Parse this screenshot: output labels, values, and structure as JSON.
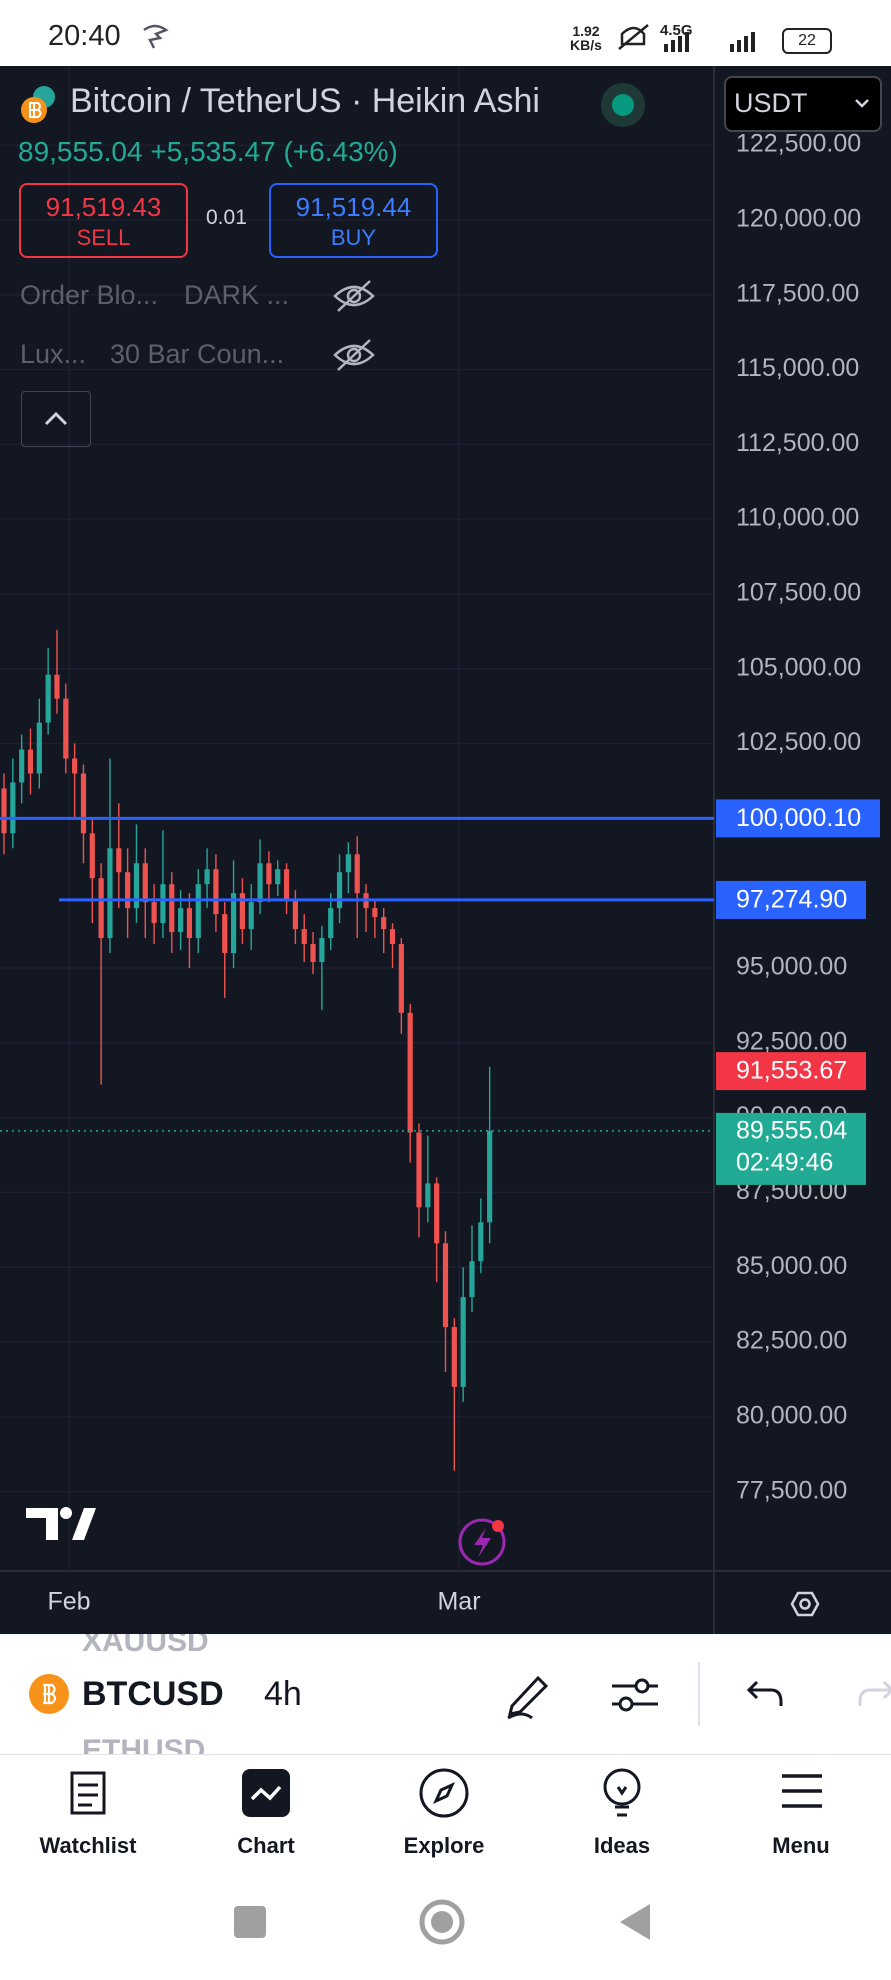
{
  "status": {
    "time": "20:40",
    "speed": "1.92",
    "speed_unit": "KB/s",
    "network": "4.5G",
    "battery": "22"
  },
  "header": {
    "currency": "USDT",
    "last": "89,555.04",
    "change": "+5,535.47",
    "change_pct": "(+6.43%)",
    "sell_price": "91,519.43",
    "sell_label": "SELL",
    "spread": "0.01",
    "buy_price": "91,519.44",
    "buy_label": "BUY",
    "indicators": [
      [
        "Order Blo...",
        "DARK ..."
      ],
      [
        "Lux...",
        "30 Bar Coun..."
      ]
    ]
  },
  "chart_data": {
    "type": "candlestick",
    "title": "Bitcoin / TetherUS · Heikin Ashi",
    "up_color": "#26a69a",
    "down_color": "#ef5350",
    "open": [
      101000,
      99500,
      101200,
      102300,
      101500,
      103200,
      104800,
      104000,
      102000,
      101500,
      99500,
      98000,
      96000,
      99000,
      98200,
      97000,
      98500,
      97200,
      96500,
      97800,
      96200,
      97000,
      96000,
      97800,
      98300,
      96800,
      95500,
      97500,
      96300,
      97200,
      98500,
      97800,
      98300,
      97300,
      96300,
      95800,
      95200,
      96000,
      97000,
      98200,
      98800,
      97500,
      97000,
      96700,
      96300,
      95800,
      93500,
      89500,
      87000,
      87800,
      85800,
      83000,
      81000,
      84000,
      85200,
      86500
    ],
    "high": [
      101500,
      102000,
      102800,
      103000,
      104000,
      105700,
      106300,
      104500,
      102500,
      101800,
      100000,
      98500,
      102000,
      100500,
      99000,
      99800,
      99000,
      97800,
      99600,
      98200,
      97600,
      97500,
      98300,
      99000,
      98800,
      97200,
      98600,
      98000,
      97800,
      99300,
      98900,
      98600,
      98500,
      97600,
      96800,
      96200,
      96400,
      97500,
      98800,
      99200,
      99400,
      97800,
      97300,
      97000,
      96500,
      96000,
      93800,
      89800,
      89400,
      88000,
      86200,
      83300,
      85000,
      86400,
      87300,
      91700
    ],
    "low": [
      98800,
      99000,
      100500,
      100800,
      101000,
      102800,
      103500,
      101500,
      100000,
      98500,
      96500,
      91100,
      95500,
      97000,
      96000,
      96500,
      96000,
      95800,
      96000,
      95500,
      95600,
      95000,
      95500,
      97000,
      96200,
      94000,
      95000,
      95800,
      95600,
      96800,
      97200,
      97400,
      96800,
      95800,
      95200,
      94800,
      93600,
      95600,
      96500,
      97500,
      96000,
      96200,
      96000,
      95500,
      95000,
      92800,
      88500,
      86000,
      86500,
      84500,
      81500,
      78200,
      80500,
      83500,
      84800,
      85800
    ],
    "close": [
      99500,
      101200,
      102300,
      101500,
      103200,
      104800,
      104000,
      102000,
      101500,
      99500,
      98000,
      96000,
      99000,
      98200,
      97000,
      98500,
      97200,
      96500,
      97800,
      96200,
      97000,
      96000,
      97800,
      98300,
      96800,
      95500,
      97500,
      96300,
      97200,
      98500,
      97800,
      98300,
      97300,
      96300,
      95800,
      95200,
      96000,
      97000,
      98200,
      98800,
      97500,
      97000,
      96700,
      96300,
      95800,
      93500,
      89500,
      87000,
      87800,
      85800,
      83000,
      81000,
      84000,
      85200,
      86500,
      89555.04
    ],
    "ylim": [
      74848,
      125143
    ],
    "grid": true,
    "grid_color": "#1c2030",
    "yticks": [
      {
        "value": 122500,
        "label": "122,500.00"
      },
      {
        "value": 120000,
        "label": "120,000.00"
      },
      {
        "value": 117500,
        "label": "117,500.00"
      },
      {
        "value": 115000,
        "label": "115,000.00"
      },
      {
        "value": 112500,
        "label": "112,500.00"
      },
      {
        "value": 110000,
        "label": "110,000.00"
      },
      {
        "value": 107500,
        "label": "107,500.00"
      },
      {
        "value": 105000,
        "label": "105,000.00"
      },
      {
        "value": 102500,
        "label": "102,500.00"
      },
      {
        "value": 95000,
        "label": "95,000.00"
      },
      {
        "value": 92500,
        "label": "92,500.00"
      },
      {
        "value": 90000,
        "label": "90,000.00"
      },
      {
        "value": 87500,
        "label": "87,500.00"
      },
      {
        "value": 85000,
        "label": "85,000.00"
      },
      {
        "value": 82500,
        "label": "82,500.00"
      },
      {
        "value": 80000,
        "label": "80,000.00"
      },
      {
        "value": 77500,
        "label": "77,500.00"
      }
    ],
    "xlabels": [
      "Feb",
      "Mar"
    ],
    "hlines": [
      {
        "value": 100000.1,
        "label": "100,000.10",
        "color": "#2962ff"
      },
      {
        "value": 97274.9,
        "label": "97,274.90",
        "color": "#2962ff"
      }
    ],
    "price_labels": [
      {
        "value": 91553.67,
        "label": "91,553.67",
        "color": "#f23645"
      },
      {
        "value": 89555.04,
        "label": "89,555.04",
        "countdown": "02:49:46",
        "color": "#22ab94"
      }
    ]
  },
  "toolbar": {
    "symbols": [
      "XAUUSD",
      "BTCUSD",
      "ETHUSD"
    ],
    "interval": "4h"
  },
  "nav": [
    "Watchlist",
    "Chart",
    "Explore",
    "Ideas",
    "Menu"
  ]
}
